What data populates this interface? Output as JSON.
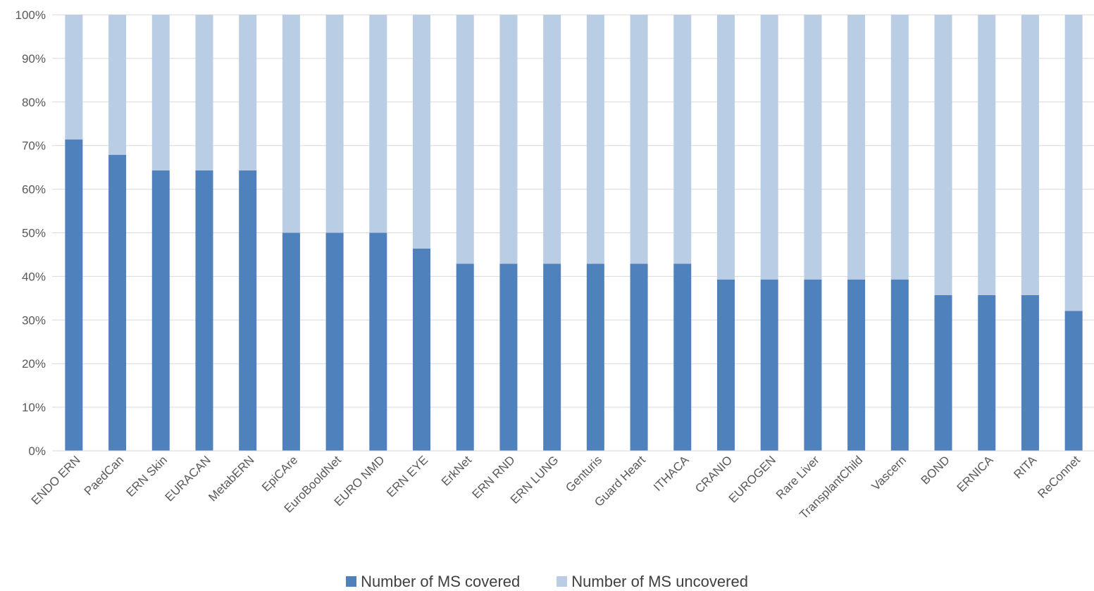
{
  "chart_data": {
    "type": "bar",
    "stacked": "percent",
    "categories": [
      "ENDO ERN",
      "PaedCan",
      "ERN Skin",
      "EURACAN",
      "MetabERN",
      "EpiCAre",
      "EuroBooldNet",
      "EURO NMD",
      "ERN EYE",
      "ErkNet",
      "ERN RND",
      "ERN LUNG",
      "Genturis",
      "Guard Heart",
      "ITHACA",
      "CRANIO",
      "EUROGEN",
      "Rare Liver",
      "TransplantChild",
      "Vascern",
      "BOND",
      "ERNICA",
      "RITA",
      "ReConnet"
    ],
    "series": [
      {
        "name": "Number of MS covered",
        "color": "#4f81bd",
        "values": [
          71.4,
          67.9,
          64.3,
          64.3,
          64.3,
          50.0,
          50.0,
          50.0,
          46.4,
          42.9,
          42.9,
          42.9,
          42.9,
          42.9,
          42.9,
          39.3,
          39.3,
          39.3,
          39.3,
          39.3,
          35.7,
          35.7,
          35.7,
          32.1
        ]
      },
      {
        "name": "Number of MS uncovered",
        "color": "#b9cde5",
        "values": [
          28.6,
          32.1,
          35.7,
          35.7,
          35.7,
          50.0,
          50.0,
          50.0,
          53.6,
          57.1,
          57.1,
          57.1,
          57.1,
          57.1,
          57.1,
          60.7,
          60.7,
          60.7,
          60.7,
          60.7,
          64.3,
          64.3,
          64.3,
          67.9
        ]
      }
    ],
    "yticks": [
      "0%",
      "10%",
      "20%",
      "30%",
      "40%",
      "50%",
      "60%",
      "70%",
      "80%",
      "90%",
      "100%"
    ],
    "ylim": [
      0,
      100
    ],
    "grid": true,
    "gridColor": "#d9d9d9",
    "legend": "bottom",
    "title": "",
    "xlabel": "",
    "ylabel": ""
  }
}
